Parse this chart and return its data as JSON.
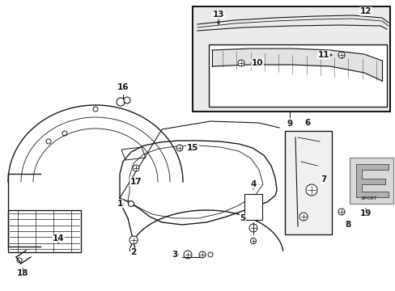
{
  "bg_color": "#ffffff",
  "line_color": "#1a1a1a",
  "gray_fill": "#e8e8e8",
  "inset_fill": "#ebebeb",
  "box_fill": "#f0f0f0"
}
